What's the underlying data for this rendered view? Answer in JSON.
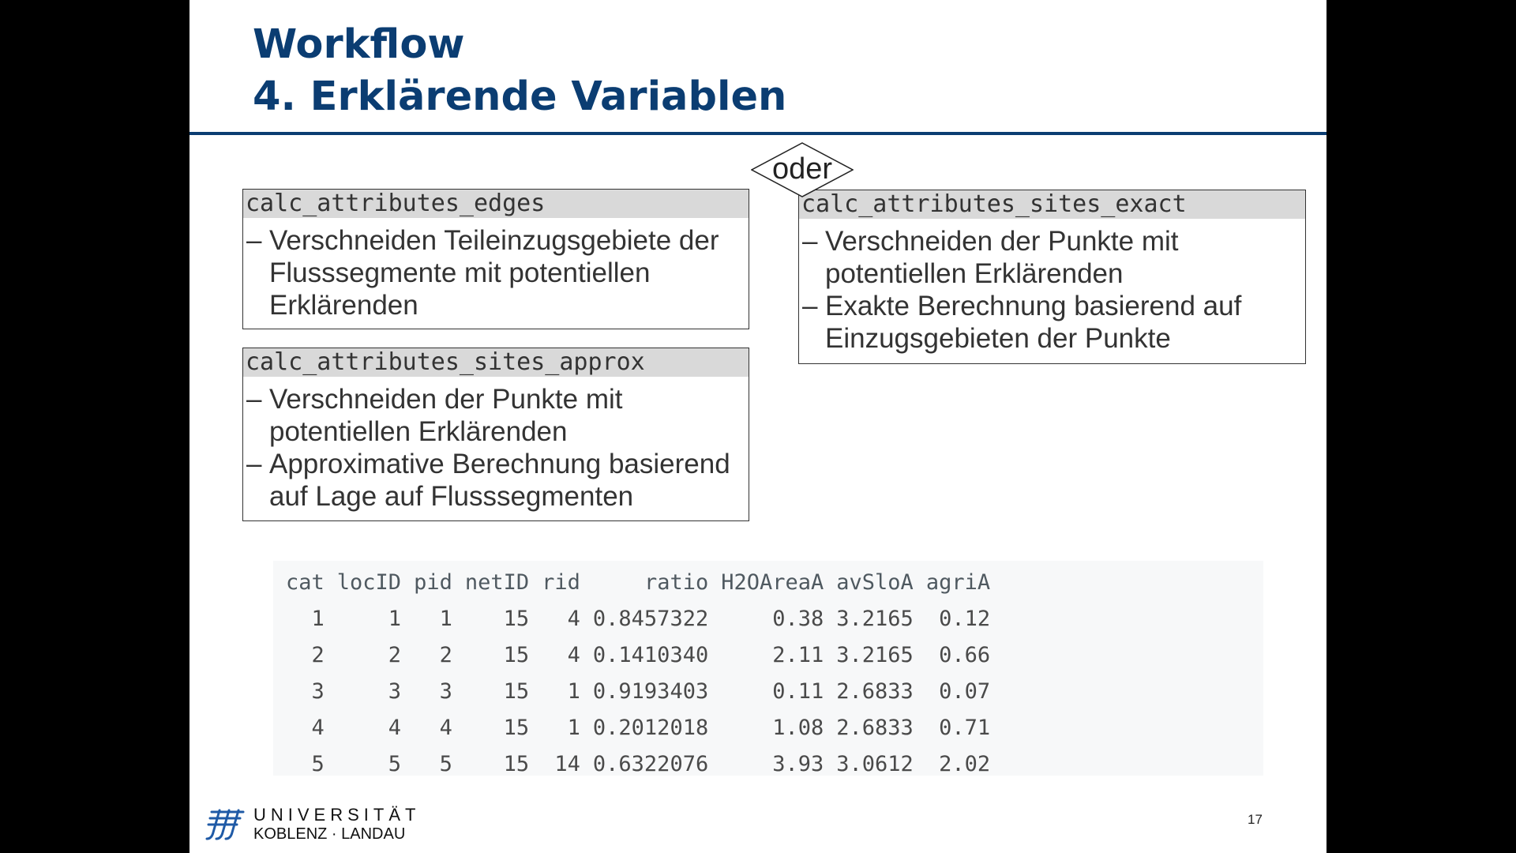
{
  "slide": {
    "title_line1": "Workflow",
    "title_line2": "4. Erklärende Variablen",
    "page_number": "17"
  },
  "connector": {
    "label": "oder"
  },
  "boxes": {
    "edges": {
      "header": "calc_attributes_edges",
      "bullets": [
        "Verschneiden Teileinzugsgebiete der Flusssegmente mit potentiellen Erklärenden"
      ]
    },
    "approx": {
      "header": "calc_attributes_sites_approx",
      "bullets": [
        "Verschneiden der Punkte mit potentiellen Erklärenden",
        "Approximative Berechnung basierend auf Lage auf Flusssegmenten"
      ]
    },
    "exact": {
      "header": "calc_attributes_sites_exact",
      "bullets": [
        "Verschneiden der Punkte mit potentiellen Erklärenden",
        "Exakte Berechnung basierend auf Einzugsgebieten der Punkte"
      ]
    },
    "bullet_marker": "–"
  },
  "table": {
    "columns": [
      "cat",
      "locID",
      "pid",
      "netID",
      "rid",
      "ratio",
      "H2OAreaA",
      "avSloA",
      "agriA"
    ],
    "rows": [
      [
        "1",
        "1",
        "1",
        "15",
        "4",
        "0.8457322",
        "0.38",
        "3.2165",
        "0.12"
      ],
      [
        "2",
        "2",
        "2",
        "15",
        "4",
        "0.1410340",
        "2.11",
        "3.2165",
        "0.66"
      ],
      [
        "3",
        "3",
        "3",
        "15",
        "1",
        "0.9193403",
        "0.11",
        "2.6833",
        "0.07"
      ],
      [
        "4",
        "4",
        "4",
        "15",
        "1",
        "0.2012018",
        "1.08",
        "2.6833",
        "0.71"
      ],
      [
        "5",
        "5",
        "5",
        "15",
        "14",
        "0.6322076",
        "3.93",
        "3.0612",
        "2.02"
      ]
    ]
  },
  "logo": {
    "line1": "UNIVERSITÄT",
    "line2": "KOBLENZ · LANDAU"
  },
  "colors": {
    "title": "#0b3d72",
    "rule": "#0b3d72",
    "box_header_bg": "#d9d9d9",
    "table_bg": "#f7f8f9",
    "logo_blue": "#1f5aa6"
  }
}
